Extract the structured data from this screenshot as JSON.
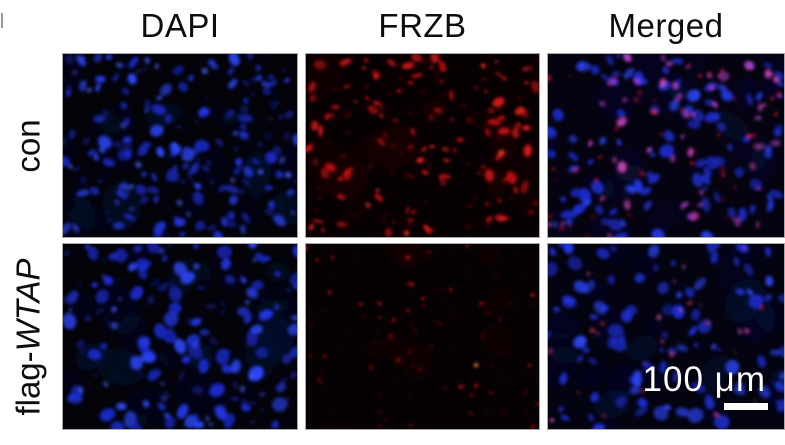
{
  "columns": [
    {
      "id": "dapi",
      "label": "DAPI"
    },
    {
      "id": "frzb",
      "label": "FRZB"
    },
    {
      "id": "merged",
      "label": "Merged"
    }
  ],
  "rows": [
    {
      "id": "con",
      "label_prefix": "con",
      "label_italic": ""
    },
    {
      "id": "flag-wtap",
      "label_prefix": "flag-",
      "label_italic": "WTAP"
    }
  ],
  "scale_bar": {
    "label": "100 μm",
    "bar_color": "#ffffff"
  },
  "colors": {
    "figure_background": "#ffffff",
    "label_text": "#0d0d0d",
    "scale_text": "#ffffff",
    "dapi_blue": "#2238ea",
    "frzb_red": "#da1414",
    "merged_magenta": "#c545d8",
    "panel_border": "#a8a8a8"
  },
  "panels": [
    {
      "name": "con-dapi",
      "row": "con",
      "column": "DAPI",
      "seed": 7,
      "bg": "#030309",
      "layers": [
        {
          "kind": "haze",
          "count": 26,
          "colors": [
            "#0a1242",
            "#0c154e",
            "#081038"
          ],
          "rmin": 10,
          "rmax": 26,
          "sqmin": 0.5,
          "sqmax": 0.9,
          "omin": 0.12,
          "omax": 0.3
        },
        {
          "kind": "dim",
          "count": 70,
          "colors": [
            "#101f90",
            "#0e1a7c",
            "#1524a8"
          ],
          "rmin": 2.2,
          "rmax": 5.5,
          "sqmin": 0.4,
          "sqmax": 0.8,
          "omin": 0.35,
          "omax": 0.7
        },
        {
          "kind": "nuclei",
          "count": 110,
          "colors": [
            "#1b2cd8",
            "#2238ea",
            "#2b46f8",
            "#1626b4"
          ],
          "rmin": 2.8,
          "rmax": 7.5,
          "sqmin": 0.45,
          "sqmax": 0.9,
          "omin": 0.6,
          "omax": 1.0
        },
        {
          "kind": "bright",
          "count": 25,
          "colors": [
            "#3c58ff",
            "#4a66ff"
          ],
          "rmin": 1.5,
          "rmax": 3.5,
          "sqmin": 0.6,
          "sqmax": 1.0,
          "omin": 0.5,
          "omax": 0.9
        }
      ]
    },
    {
      "name": "con-frzb",
      "row": "con",
      "column": "FRZB",
      "seed": 23,
      "bg": "#070103",
      "layers": [
        {
          "kind": "haze",
          "count": 14,
          "colors": [
            "#1c0406",
            "#240508"
          ],
          "rmin": 12,
          "rmax": 28,
          "sqmin": 0.5,
          "sqmax": 0.9,
          "omin": 0.25,
          "omax": 0.5
        },
        {
          "kind": "dim",
          "count": 70,
          "colors": [
            "#6e0b0b",
            "#8c1010",
            "#5a0808"
          ],
          "rmin": 1.8,
          "rmax": 4.5,
          "sqmin": 0.35,
          "sqmax": 0.7,
          "omin": 0.3,
          "omax": 0.6
        },
        {
          "kind": "signal",
          "count": 95,
          "colors": [
            "#c01010",
            "#da1414",
            "#ee1c1c"
          ],
          "rmin": 1.8,
          "rmax": 6.5,
          "sqmin": 0.35,
          "sqmax": 0.75,
          "omin": 0.5,
          "omax": 0.95
        },
        {
          "kind": "bright",
          "count": 22,
          "colors": [
            "#ff2e2e",
            "#ff4030"
          ],
          "rmin": 1.2,
          "rmax": 3.0,
          "sqmin": 0.5,
          "sqmax": 0.9,
          "omin": 0.6,
          "omax": 1.0
        }
      ]
    },
    {
      "name": "con-merged",
      "row": "con",
      "column": "Merged",
      "seed": 41,
      "bg": "#050310",
      "layers": [
        {
          "kind": "haze",
          "count": 24,
          "colors": [
            "#0c1148",
            "#101650"
          ],
          "rmin": 10,
          "rmax": 24,
          "sqmin": 0.5,
          "sqmax": 0.9,
          "omin": 0.12,
          "omax": 0.28
        },
        {
          "kind": "nuclei",
          "count": 105,
          "colors": [
            "#1c2dd8",
            "#2337ea",
            "#2b46f8",
            "#1828b8"
          ],
          "rmin": 2.8,
          "rmax": 7.5,
          "sqmin": 0.45,
          "sqmax": 0.9,
          "omin": 0.55,
          "omax": 0.95
        },
        {
          "kind": "overlap",
          "count": 48,
          "colors": [
            "#c545d8",
            "#b84ae4",
            "#e050d0",
            "#cf3db8"
          ],
          "rmin": 2.0,
          "rmax": 5.5,
          "sqmin": 0.45,
          "sqmax": 0.85,
          "omin": 0.5,
          "omax": 0.9
        },
        {
          "kind": "signal",
          "count": 40,
          "colors": [
            "#e81818",
            "#ff2a2a"
          ],
          "rmin": 1.0,
          "rmax": 2.8,
          "sqmin": 0.5,
          "sqmax": 0.9,
          "omin": 0.5,
          "omax": 0.9
        }
      ]
    },
    {
      "name": "flag-wtap-dapi",
      "row": "flag-WTAP",
      "column": "DAPI",
      "seed": 59,
      "bg": "#030309",
      "layers": [
        {
          "kind": "haze",
          "count": 28,
          "colors": [
            "#0a1242",
            "#0d1754",
            "#081038"
          ],
          "rmin": 10,
          "rmax": 28,
          "sqmin": 0.5,
          "sqmax": 0.9,
          "omin": 0.14,
          "omax": 0.32
        },
        {
          "kind": "dim",
          "count": 60,
          "colors": [
            "#101f90",
            "#0e1a7c"
          ],
          "rmin": 2.2,
          "rmax": 6.0,
          "sqmin": 0.4,
          "sqmax": 0.8,
          "omin": 0.35,
          "omax": 0.65
        },
        {
          "kind": "nuclei",
          "count": 95,
          "colors": [
            "#1b2cd8",
            "#2238ea",
            "#2b46f8",
            "#1626b4"
          ],
          "rmin": 3.0,
          "rmax": 8.5,
          "sqmin": 0.55,
          "sqmax": 0.95,
          "omin": 0.6,
          "omax": 1.0
        },
        {
          "kind": "bright",
          "count": 18,
          "colors": [
            "#3c58ff",
            "#4a66ff"
          ],
          "rmin": 1.5,
          "rmax": 3.5,
          "sqmin": 0.6,
          "sqmax": 1.0,
          "omin": 0.5,
          "omax": 0.9
        }
      ]
    },
    {
      "name": "flag-wtap-frzb",
      "row": "flag-WTAP",
      "column": "FRZB",
      "seed": 77,
      "bg": "#060102",
      "layers": [
        {
          "kind": "haze",
          "count": 10,
          "colors": [
            "#180305",
            "#200407"
          ],
          "rmin": 12,
          "rmax": 26,
          "sqmin": 0.5,
          "sqmax": 0.9,
          "omin": 0.2,
          "omax": 0.4
        },
        {
          "kind": "dim",
          "count": 55,
          "colors": [
            "#7a0c0c",
            "#5e0909"
          ],
          "rmin": 0.8,
          "rmax": 2.2,
          "sqmin": 0.5,
          "sqmax": 0.9,
          "omin": 0.3,
          "omax": 0.6
        },
        {
          "kind": "signal",
          "count": 65,
          "colors": [
            "#b01111",
            "#cc1414",
            "#e01818"
          ],
          "rmin": 0.8,
          "rmax": 2.6,
          "sqmin": 0.5,
          "sqmax": 0.9,
          "omin": 0.45,
          "omax": 0.9
        },
        {
          "kind": "orange-spot",
          "count": 1,
          "colors": [
            "#e2882a"
          ],
          "rmin": 2.0,
          "rmax": 2.6,
          "sqmin": 0.8,
          "sqmax": 1.0,
          "omin": 0.95,
          "omax": 1.0
        }
      ]
    },
    {
      "name": "flag-wtap-merged",
      "row": "flag-WTAP",
      "column": "Merged",
      "seed": 93,
      "bg": "#040310",
      "layers": [
        {
          "kind": "haze",
          "count": 26,
          "colors": [
            "#0c1148",
            "#0e144e"
          ],
          "rmin": 10,
          "rmax": 26,
          "sqmin": 0.5,
          "sqmax": 0.9,
          "omin": 0.13,
          "omax": 0.3
        },
        {
          "kind": "nuclei",
          "count": 100,
          "colors": [
            "#1c2dd8",
            "#2337ea",
            "#2b46f8",
            "#1828b8"
          ],
          "rmin": 2.8,
          "rmax": 8.0,
          "sqmin": 0.5,
          "sqmax": 0.95,
          "omin": 0.55,
          "omax": 0.95
        },
        {
          "kind": "signal",
          "count": 26,
          "colors": [
            "#e84fd0",
            "#f06ad8",
            "#e83848"
          ],
          "rmin": 1.0,
          "rmax": 2.6,
          "sqmin": 0.5,
          "sqmax": 0.9,
          "omin": 0.5,
          "omax": 0.9
        }
      ]
    }
  ]
}
